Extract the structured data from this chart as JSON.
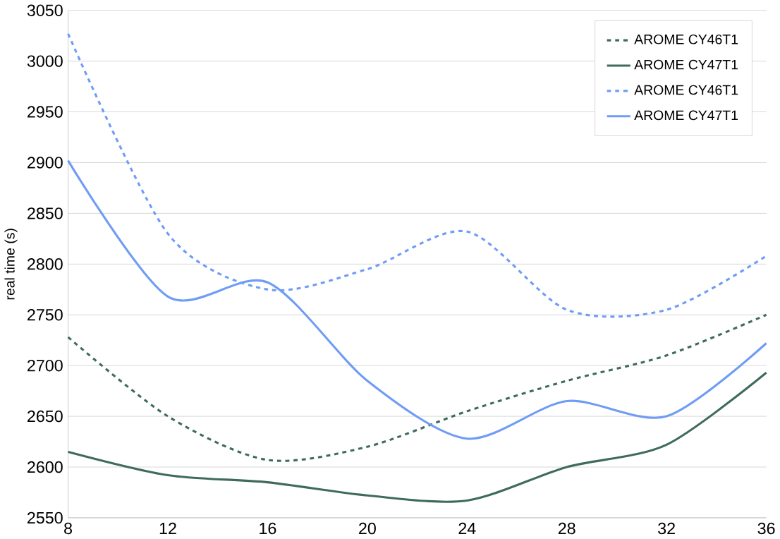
{
  "chart_data": {
    "type": "line",
    "ylabel": "real time (s)",
    "x": [
      8,
      12,
      16,
      20,
      24,
      28,
      32,
      36
    ],
    "series": [
      {
        "name": "AROME CY46T1",
        "color": "#3f6b5f",
        "line_style": "dashed",
        "values": [
          2728,
          2650,
          2607,
          2620,
          2655,
          2685,
          2710,
          2750
        ]
      },
      {
        "name": "AROME CY47T1",
        "color": "#3f6b5f",
        "line_style": "solid",
        "values": [
          2615,
          2592,
          2585,
          2572,
          2567,
          2600,
          2622,
          2693
        ]
      },
      {
        "name": "AROME CY46T1",
        "color": "#6f9cf5",
        "line_style": "dashed",
        "values": [
          3027,
          2830,
          2775,
          2795,
          2832,
          2755,
          2755,
          2808
        ]
      },
      {
        "name": "AROME CY47T1",
        "color": "#6f9cf5",
        "line_style": "solid",
        "values": [
          2902,
          2768,
          2782,
          2685,
          2628,
          2665,
          2650,
          2722
        ]
      }
    ],
    "xlim": [
      8,
      36
    ],
    "ylim": [
      2550,
      3050
    ],
    "xticks": [
      8,
      12,
      16,
      20,
      24,
      28,
      32,
      36
    ],
    "yticks": [
      2550,
      2600,
      2650,
      2700,
      2750,
      2800,
      2850,
      2900,
      2950,
      3000,
      3050
    ],
    "grid": "y",
    "legend": "top right"
  }
}
